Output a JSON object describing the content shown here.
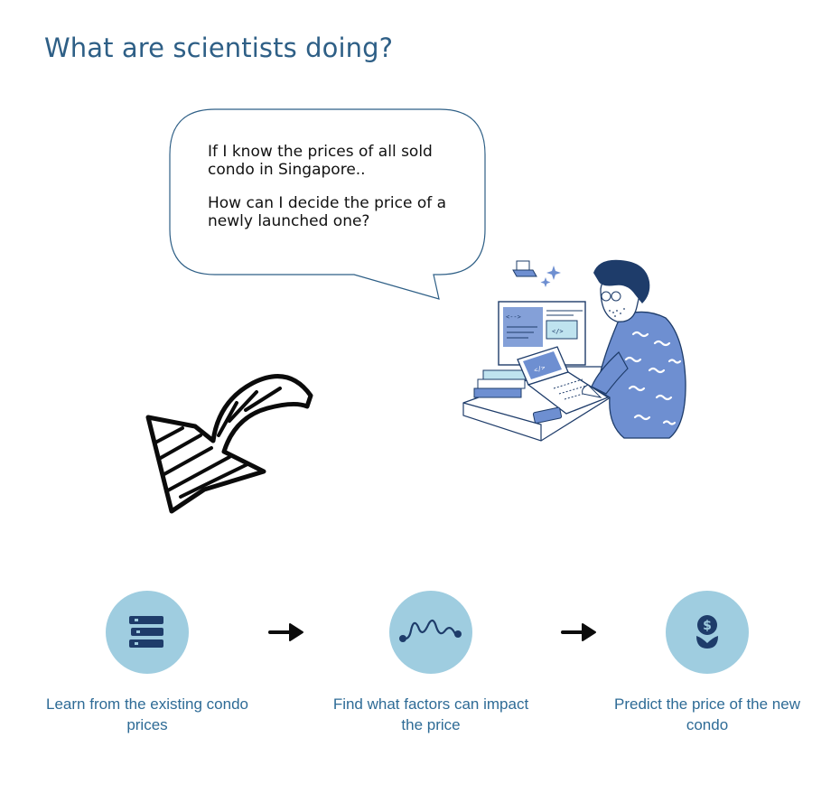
{
  "title": "What are scientists doing?",
  "bubble": {
    "line1": "If I know the prices of all sold condo in Singapore..",
    "line2": "How can I decide the price of a newly launched one?"
  },
  "illustration": {
    "icon": "scientist-at-computer-illustration",
    "code_tags": [
      "<-->",
      "</>",
      "</>"
    ]
  },
  "steps": [
    {
      "label": "Learn from the existing condo prices",
      "icon": "books-stack-icon"
    },
    {
      "label": "Find what factors can impact the price",
      "icon": "wavy-line-icon"
    },
    {
      "label": "Predict the price of the new condo",
      "icon": "dollar-plant-icon"
    }
  ],
  "colors": {
    "title": "#2e5f86",
    "circle": "#9fcde0",
    "icon": "#1e3c6a",
    "label": "#2e6b96",
    "shirt": "#6e8fd1"
  }
}
